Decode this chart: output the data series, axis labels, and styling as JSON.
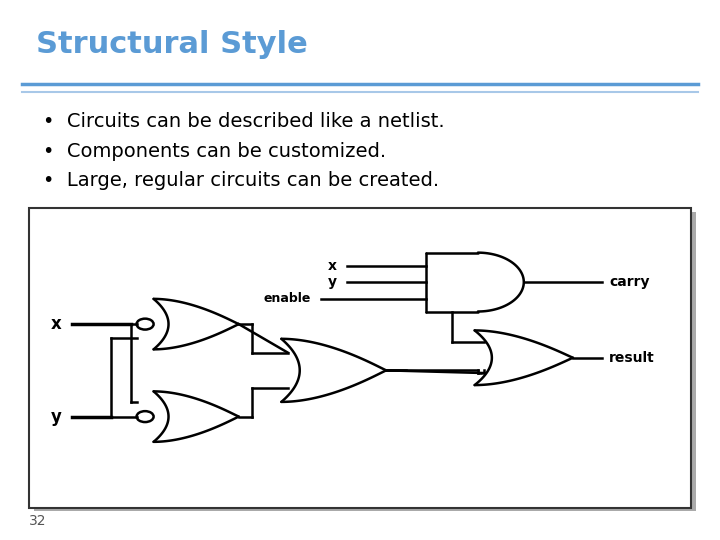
{
  "title": "Structural Style",
  "title_color": "#5B9BD5",
  "title_fontsize": 22,
  "bg_color": "#FFFFFF",
  "separator_color1": "#5B9BD5",
  "separator_color2": "#A8C8E8",
  "bullets": [
    "Circuits can be described like a netlist.",
    "Components can be customized.",
    "Large, regular circuits can be created."
  ],
  "bullet_fontsize": 14,
  "bullet_color": "#000000",
  "page_number": "32",
  "diagram_edge_color": "#333333",
  "line_color": "#000000"
}
